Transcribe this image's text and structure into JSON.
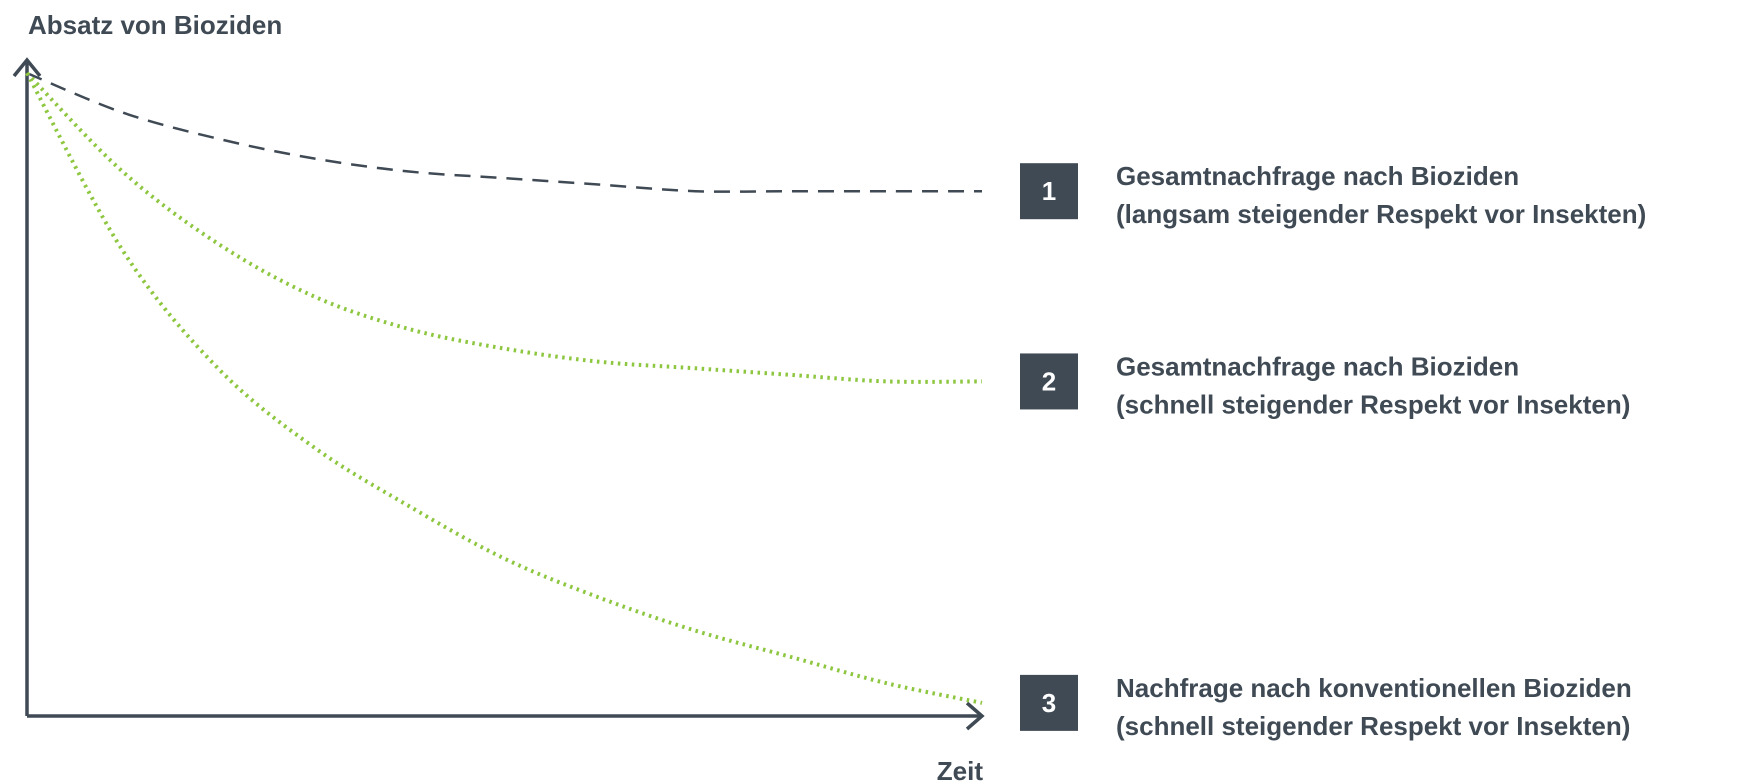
{
  "chart_data": {
    "type": "line",
    "ylabel": "Absatz von Bioziden",
    "xlabel": "Zeit",
    "xlim": [
      0,
      1
    ],
    "ylim": [
      0,
      1
    ],
    "grid": false,
    "legend_placement": "right",
    "series": [
      {
        "id": "1",
        "badge": "1",
        "line1": "Gesamtnachfrage nach Bioziden",
        "line2": "(langsam steigender Respekt vor Insekten)",
        "style": "dashed",
        "color": "#3f4a55",
        "x": [
          0,
          0.1,
          0.2,
          0.3,
          0.4,
          0.5,
          0.6,
          0.7,
          0.8,
          0.9,
          1.0
        ],
        "y": [
          0.98,
          0.92,
          0.88,
          0.85,
          0.83,
          0.82,
          0.81,
          0.8,
          0.8,
          0.8,
          0.8
        ]
      },
      {
        "id": "2",
        "badge": "2",
        "line1": "Gesamtnachfrage nach Bioziden",
        "line2": "(schnell steigender Respekt vor Insekten)",
        "style": "dotted",
        "color": "#8dc63f",
        "x": [
          0,
          0.1,
          0.2,
          0.3,
          0.4,
          0.5,
          0.6,
          0.7,
          0.8,
          0.9,
          1.0
        ],
        "y": [
          0.98,
          0.83,
          0.72,
          0.64,
          0.59,
          0.56,
          0.54,
          0.53,
          0.52,
          0.51,
          0.51
        ]
      },
      {
        "id": "3",
        "badge": "3",
        "line1": "Nachfrage nach konventionellen Bioziden",
        "line2": "(schnell steigender Respekt vor Insekten)",
        "style": "dotted",
        "color": "#8dc63f",
        "x": [
          0,
          0.1,
          0.2,
          0.3,
          0.4,
          0.5,
          0.6,
          0.7,
          0.8,
          0.9,
          1.0
        ],
        "y": [
          0.98,
          0.71,
          0.53,
          0.41,
          0.32,
          0.24,
          0.18,
          0.13,
          0.09,
          0.05,
          0.02
        ]
      }
    ]
  },
  "colors": {
    "axis": "#3f4a55",
    "text": "#3f4a55",
    "badge_bg": "#3f4a55",
    "badge_text": "#ffffff",
    "green": "#8dc63f"
  }
}
